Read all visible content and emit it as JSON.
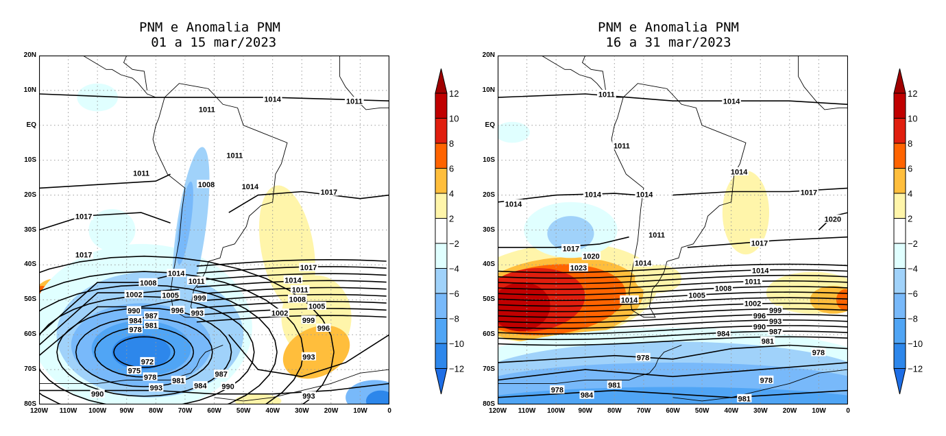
{
  "panels": [
    {
      "title_line1": "PNM e Anomalia PNM",
      "title_line2": " 01 a 15 mar/2023",
      "contour_labels": [
        {
          "t": "1014",
          "lon": -40,
          "lat": 7.6
        },
        {
          "t": "1011",
          "lon": -62.5,
          "lat": 4.7
        },
        {
          "t": "1011",
          "lon": -12,
          "lat": 7
        },
        {
          "t": "1011",
          "lon": -85,
          "lat": -13.6
        },
        {
          "t": "1011",
          "lon": -53,
          "lat": -8.5
        },
        {
          "t": "1008",
          "lon": -62.7,
          "lat": -16.8
        },
        {
          "t": "1014",
          "lon": -47.7,
          "lat": -17.4
        },
        {
          "t": "1017",
          "lon": -20.7,
          "lat": -19
        },
        {
          "t": "1017",
          "lon": -104.7,
          "lat": -26
        },
        {
          "t": "1017",
          "lon": -104.7,
          "lat": -37
        },
        {
          "t": "1017",
          "lon": -27.7,
          "lat": -40.6
        },
        {
          "t": "1014",
          "lon": -33,
          "lat": -44.2
        },
        {
          "t": "1011",
          "lon": -30.6,
          "lat": -47
        },
        {
          "t": "1008",
          "lon": -31.5,
          "lat": -49.7
        },
        {
          "t": "1005",
          "lon": -31.8,
          "lat": -51.7
        },
        {
          "t": "1002",
          "lon": -30.6,
          "lat": -53.7
        },
        {
          "t": "999",
          "lon": -27.7,
          "lat": -55.7
        },
        {
          "t": "996",
          "lon": -28,
          "lat": -58
        },
        {
          "t": "993",
          "lon": -27.6,
          "lat": -66.2
        },
        {
          "t": "993",
          "lon": -27.6,
          "lat": -77.4
        },
        {
          "t": "1014",
          "lon": -73,
          "lat": -42.3
        },
        {
          "t": "1011",
          "lon": -73,
          "lat": -44.5
        },
        {
          "t": "1008",
          "lon": -82.6,
          "lat": -45
        },
        {
          "t": "1002",
          "lon": -87.5,
          "lat": -48.4
        },
        {
          "t": "1005",
          "lon": -75,
          "lat": -48.6
        },
        {
          "t": "999",
          "lon": -70.4,
          "lat": -49.4
        },
        {
          "t": "996",
          "lon": -72.6,
          "lat": -52.9
        },
        {
          "t": "993",
          "lon": -65.8,
          "lat": -53.7
        },
        {
          "t": "990",
          "lon": -87.5,
          "lat": -53
        },
        {
          "t": "987",
          "lon": -87,
          "lat": -54.5
        },
        {
          "t": "984",
          "lon": -87,
          "lat": -55.8
        },
        {
          "t": "981",
          "lon": -87,
          "lat": -57.2
        },
        {
          "t": "978",
          "lon": -87,
          "lat": -58.4
        },
        {
          "t": "972",
          "lon": -82.9,
          "lat": -67.6
        },
        {
          "t": "975",
          "lon": -87.4,
          "lat": -70.2
        },
        {
          "t": "978",
          "lon": -87.4,
          "lat": -72
        },
        {
          "t": "981",
          "lon": -77.7,
          "lat": -73
        },
        {
          "t": "984",
          "lon": -70.2,
          "lat": -74.5
        },
        {
          "t": "993",
          "lon": -79.9,
          "lat": -75.1
        },
        {
          "t": "987",
          "lon": -57.6,
          "lat": -71.2
        },
        {
          "t": "990",
          "lon": -55.3,
          "lat": -74.7
        },
        {
          "t": "990",
          "lon": -100,
          "lat": -76.9
        }
      ]
    },
    {
      "title_line1": "PNM e Anomalia PNM",
      "title_line2": "16 a 31 mar/2023",
      "contour_labels": [
        {
          "t": "1014",
          "lon": -39.9,
          "lat": 7
        },
        {
          "t": "1011",
          "lon": -82.7,
          "lat": 9
        },
        {
          "t": "1011",
          "lon": -77.5,
          "lat": -5.7
        },
        {
          "t": "1014",
          "lon": -37.3,
          "lat": -13.2
        },
        {
          "t": "1014",
          "lon": -114.6,
          "lat": -22.4
        },
        {
          "t": "1014",
          "lon": -87.4,
          "lat": -19.7
        },
        {
          "t": "1014",
          "lon": -69.7,
          "lat": -19.7
        },
        {
          "t": "1017",
          "lon": -13.4,
          "lat": -19.1
        },
        {
          "t": "1020",
          "lon": -5.2,
          "lat": -26.8
        },
        {
          "t": "1017",
          "lon": -30.3,
          "lat": -33.6
        },
        {
          "t": "1011",
          "lon": -65.5,
          "lat": -31.3
        },
        {
          "t": "1017",
          "lon": -94.9,
          "lat": -35.2
        },
        {
          "t": "1020",
          "lon": -94.9,
          "lat": -37.4
        },
        {
          "t": "1023",
          "lon": -92.3,
          "lat": -40.7
        },
        {
          "t": "1014",
          "lon": -70.2,
          "lat": -39.3
        },
        {
          "t": "1014",
          "lon": -30,
          "lat": -41.5
        },
        {
          "t": "1011",
          "lon": -32.6,
          "lat": -44.6
        },
        {
          "t": "1008",
          "lon": -42.7,
          "lat": -46.6
        },
        {
          "t": "1005",
          "lon": -44.8,
          "lat": -48.6
        },
        {
          "t": "1002",
          "lon": -32.6,
          "lat": -50.9
        },
        {
          "t": "999",
          "lon": -30.3,
          "lat": -52.9
        },
        {
          "t": "996",
          "lon": -30.3,
          "lat": -54.5
        },
        {
          "t": "993",
          "lon": -30.3,
          "lat": -56
        },
        {
          "t": "990",
          "lon": -30.3,
          "lat": -57.6
        },
        {
          "t": "987",
          "lon": -30.3,
          "lat": -59
        },
        {
          "t": "984",
          "lon": -42.7,
          "lat": -59.6
        },
        {
          "t": "981",
          "lon": -27.5,
          "lat": -61.7
        },
        {
          "t": "978",
          "lon": -70.2,
          "lat": -66.4
        },
        {
          "t": "978",
          "lon": -10.1,
          "lat": -65
        },
        {
          "t": "978",
          "lon": -28,
          "lat": -72.9
        },
        {
          "t": "981",
          "lon": -80,
          "lat": -74.3
        },
        {
          "t": "978",
          "lon": -99.6,
          "lat": -75.7
        },
        {
          "t": "984",
          "lon": -94.9,
          "lat": -77.2
        },
        {
          "t": "981",
          "lon": -35.5,
          "lat": -78.2
        },
        {
          "t": "1014",
          "lon": -74.9,
          "lat": -49.9
        }
      ]
    }
  ],
  "y_axis_labels": [
    "20N",
    "10N",
    "EQ",
    "10S",
    "20S",
    "30S",
    "40S",
    "50S",
    "60S",
    "70S",
    "80S"
  ],
  "x_axis_labels": [
    "120W",
    "110W",
    "100W",
    "90W",
    "80W",
    "70W",
    "60W",
    "50W",
    "40W",
    "30W",
    "20W",
    "10W",
    "0"
  ],
  "colorbar": {
    "labels": [
      "12",
      "10",
      "8",
      "6",
      "4",
      "2",
      "−2",
      "−4",
      "−6",
      "−8",
      "−10",
      "−12"
    ],
    "colors": [
      "#a00000",
      "#c00000",
      "#e01e0e",
      "#ff6400",
      "#ffbe3c",
      "#fff5aa",
      "#ffffff",
      "#e0ffff",
      "#a0d2fa",
      "#78b9fa",
      "#50a5f5",
      "#2d87eb",
      "#1e6ee6"
    ]
  }
}
